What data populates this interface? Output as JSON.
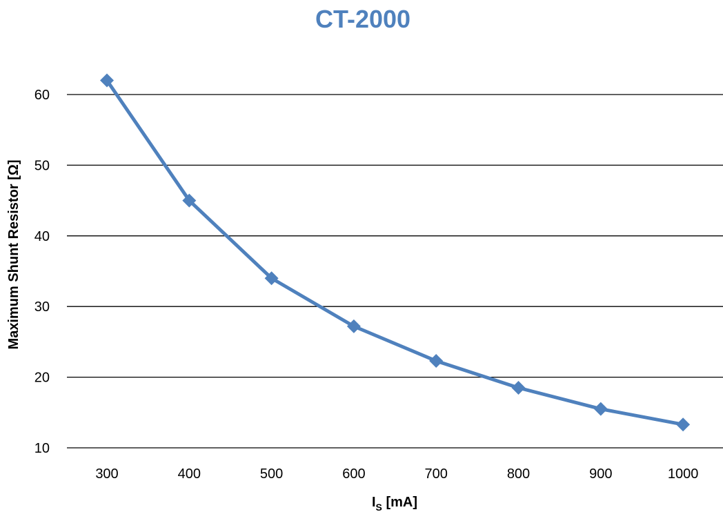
{
  "chart_data": {
    "type": "line",
    "title": "CT-2000",
    "xlabel": "I",
    "xlabel_subscript": "S",
    "xlabel_unit": " [mA]",
    "ylabel": "Maximum Shunt Resistor [Ω]",
    "categories": [
      "300",
      "400",
      "500",
      "600",
      "700",
      "800",
      "900",
      "1000"
    ],
    "y_ticks": [
      10,
      20,
      30,
      40,
      50,
      60
    ],
    "ylim": [
      10,
      60
    ],
    "grid": true,
    "series": [
      {
        "values": [
          62,
          45,
          34,
          27.2,
          22.3,
          18.5,
          15.5,
          13.3
        ],
        "color": "#4F81BD",
        "marker": "diamond"
      }
    ],
    "colors": {
      "title": "#4F81BD",
      "line": "#4F81BD"
    }
  }
}
